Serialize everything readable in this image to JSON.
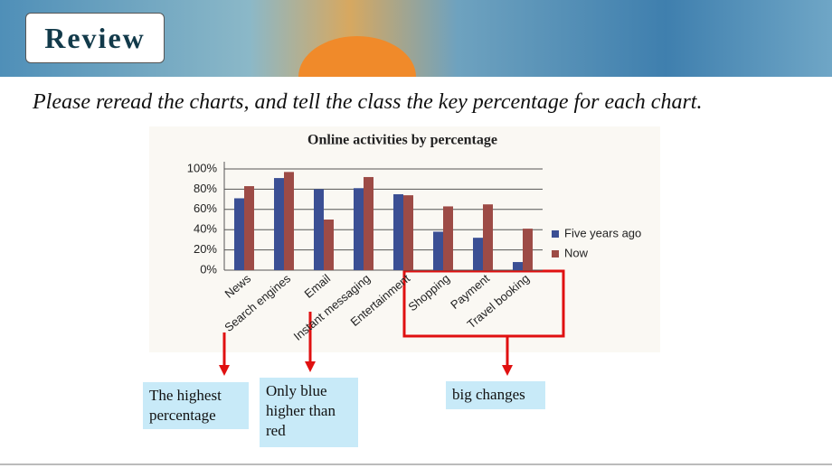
{
  "header": {
    "title": "Review"
  },
  "instruction": "Please reread the charts, and tell the class the key percentage for each chart.",
  "annotations": [
    "The highest percentage",
    "Only blue higher than red",
    "big changes"
  ],
  "chart_data": {
    "type": "bar",
    "title": "Online activities by percentage",
    "categories": [
      "News",
      "Search engines",
      "Email",
      "Instant messaging",
      "Entertainment",
      "Shopping",
      "Payment",
      "Travel booking"
    ],
    "series": [
      {
        "name": "Five years ago",
        "color": "#3b4f94",
        "values": [
          71,
          91,
          80,
          81,
          75,
          38,
          32,
          8
        ]
      },
      {
        "name": "Now",
        "color": "#9d4b46",
        "values": [
          83,
          97,
          50,
          92,
          74,
          63,
          65,
          41
        ]
      }
    ],
    "ylim": [
      0,
      100
    ],
    "yticks": [
      {
        "value": 0,
        "label": "0%"
      },
      {
        "value": 20,
        "label": "20%"
      },
      {
        "value": 40,
        "label": "40%"
      },
      {
        "value": 60,
        "label": "60%"
      },
      {
        "value": 80,
        "label": "80%"
      },
      {
        "value": 100,
        "label": "100%"
      }
    ],
    "grid": true,
    "legend": "right"
  }
}
